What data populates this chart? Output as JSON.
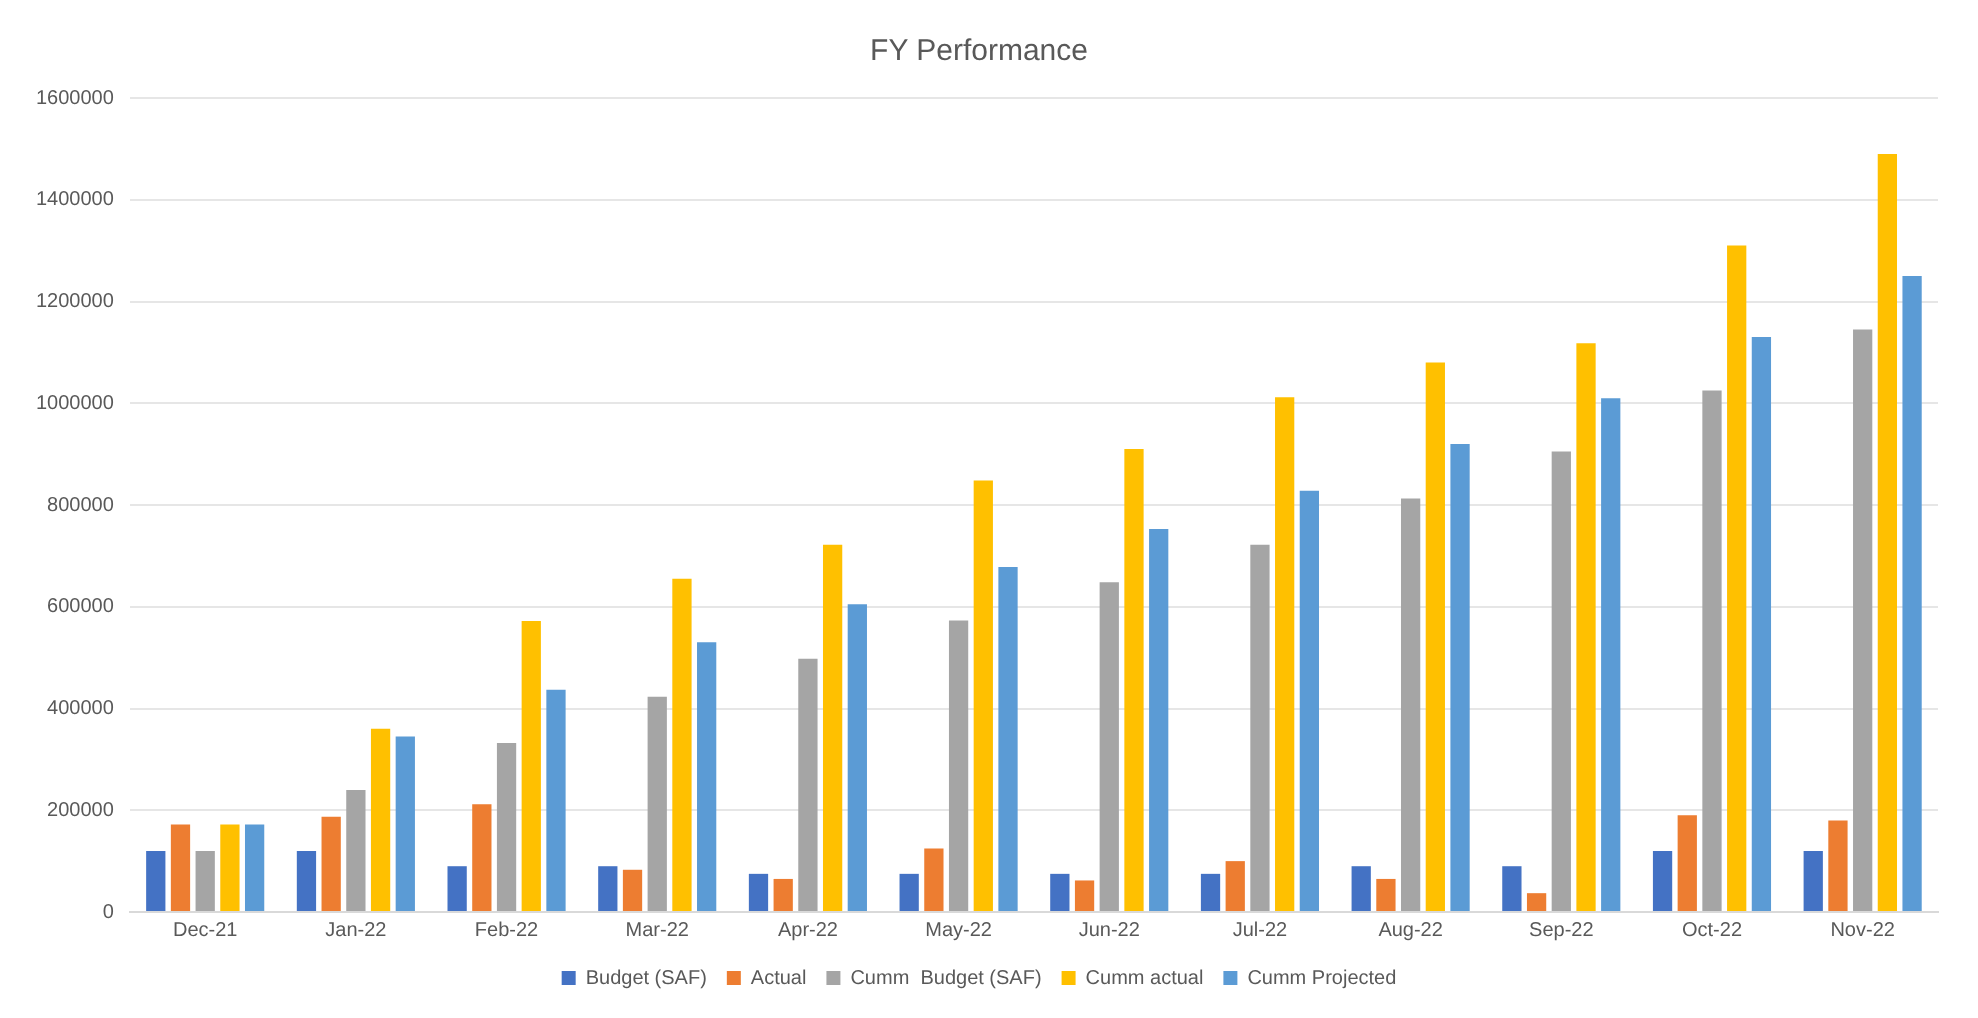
{
  "chart_data": {
    "type": "bar",
    "title": "FY Performance",
    "categories": [
      "Dec-21",
      "Jan-22",
      "Feb-22",
      "Mar-22",
      "Apr-22",
      "May-22",
      "Jun-22",
      "Jul-22",
      "Aug-22",
      "Sep-22",
      "Oct-22",
      "Nov-22"
    ],
    "series": [
      {
        "name": "Budget (SAF)",
        "color": "#4472c4",
        "values": [
          120000,
          120000,
          90000,
          90000,
          75000,
          75000,
          75000,
          75000,
          90000,
          90000,
          120000,
          120000
        ]
      },
      {
        "name": "Actual",
        "color": "#ed7d31",
        "values": [
          172000,
          187000,
          212000,
          83000,
          65000,
          125000,
          62000,
          100000,
          65000,
          37000,
          190000,
          180000
        ]
      },
      {
        "name": "Cumm  Budget (SAF)",
        "color": "#a5a5a5",
        "values": [
          120000,
          240000,
          332000,
          423000,
          498000,
          573000,
          648000,
          722000,
          813000,
          905000,
          1025000,
          1145000
        ]
      },
      {
        "name": "Cumm actual",
        "color": "#ffc000",
        "values": [
          172000,
          360000,
          572000,
          655000,
          722000,
          848000,
          910000,
          1012000,
          1080000,
          1118000,
          1310000,
          1490000
        ]
      },
      {
        "name": "Cumm Projected",
        "color": "#5b9bd5",
        "values": [
          172000,
          345000,
          437000,
          530000,
          605000,
          678000,
          753000,
          828000,
          920000,
          1010000,
          1130000,
          1250000
        ]
      }
    ],
    "ylim": [
      0,
      1600000
    ],
    "yticks": [
      0,
      200000,
      400000,
      600000,
      800000,
      1000000,
      1200000,
      1400000,
      1600000
    ],
    "grid": "y",
    "legend": "bottom"
  }
}
